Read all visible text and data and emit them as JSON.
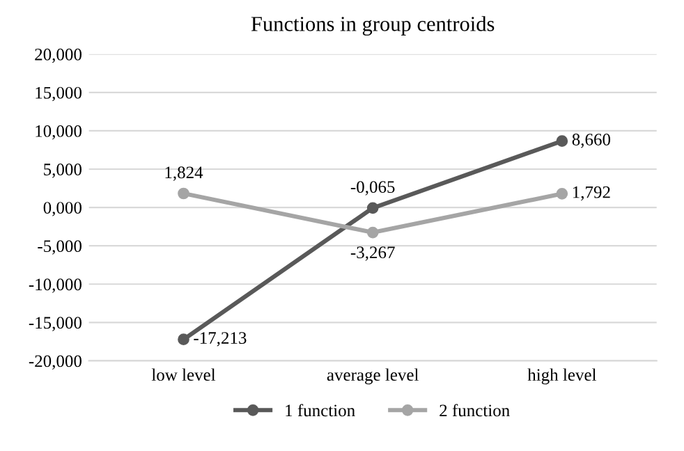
{
  "chart_data": {
    "type": "line",
    "title": "Functions in group centroids",
    "categories": [
      "low level",
      "average level",
      "high level"
    ],
    "series": [
      {
        "name": "1 function",
        "color": "#595959",
        "values": [
          -17.213,
          -0.065,
          8.66
        ],
        "value_labels": [
          "-17,213",
          "-0,065",
          "8,660"
        ]
      },
      {
        "name": "2 function",
        "color": "#a5a5a5",
        "values": [
          1.824,
          -3.267,
          1.792
        ],
        "value_labels": [
          "1,824",
          "-3,267",
          "1,792"
        ]
      }
    ],
    "ylim": [
      -20,
      20
    ],
    "yticks": [
      {
        "value": -20,
        "label": "-20,000"
      },
      {
        "value": -15,
        "label": "-15,000"
      },
      {
        "value": -10,
        "label": "-10,000"
      },
      {
        "value": -5,
        "label": "-5,000"
      },
      {
        "value": 0,
        "label": "0,000"
      },
      {
        "value": 5,
        "label": "5,000"
      },
      {
        "value": 10,
        "label": "10,000"
      },
      {
        "value": 15,
        "label": "15,000"
      },
      {
        "value": 20,
        "label": "20,000"
      }
    ],
    "grid": "y",
    "legend": "bottom",
    "marker": "circle",
    "line_style": "solid"
  }
}
